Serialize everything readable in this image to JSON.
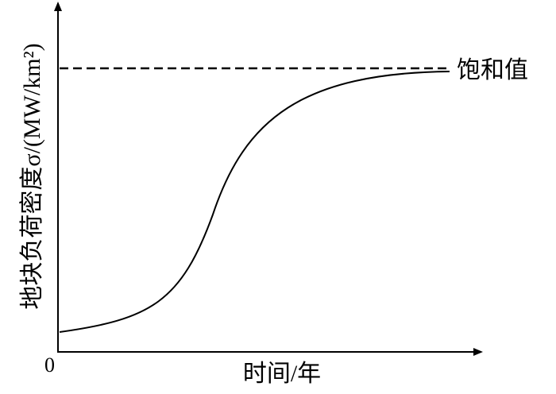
{
  "axes": {
    "y_label": "地块负荷密度σ/(MW/km²)",
    "x_label": "时间/年",
    "origin": "0"
  },
  "annotations": {
    "saturation": "饱和值"
  }
}
